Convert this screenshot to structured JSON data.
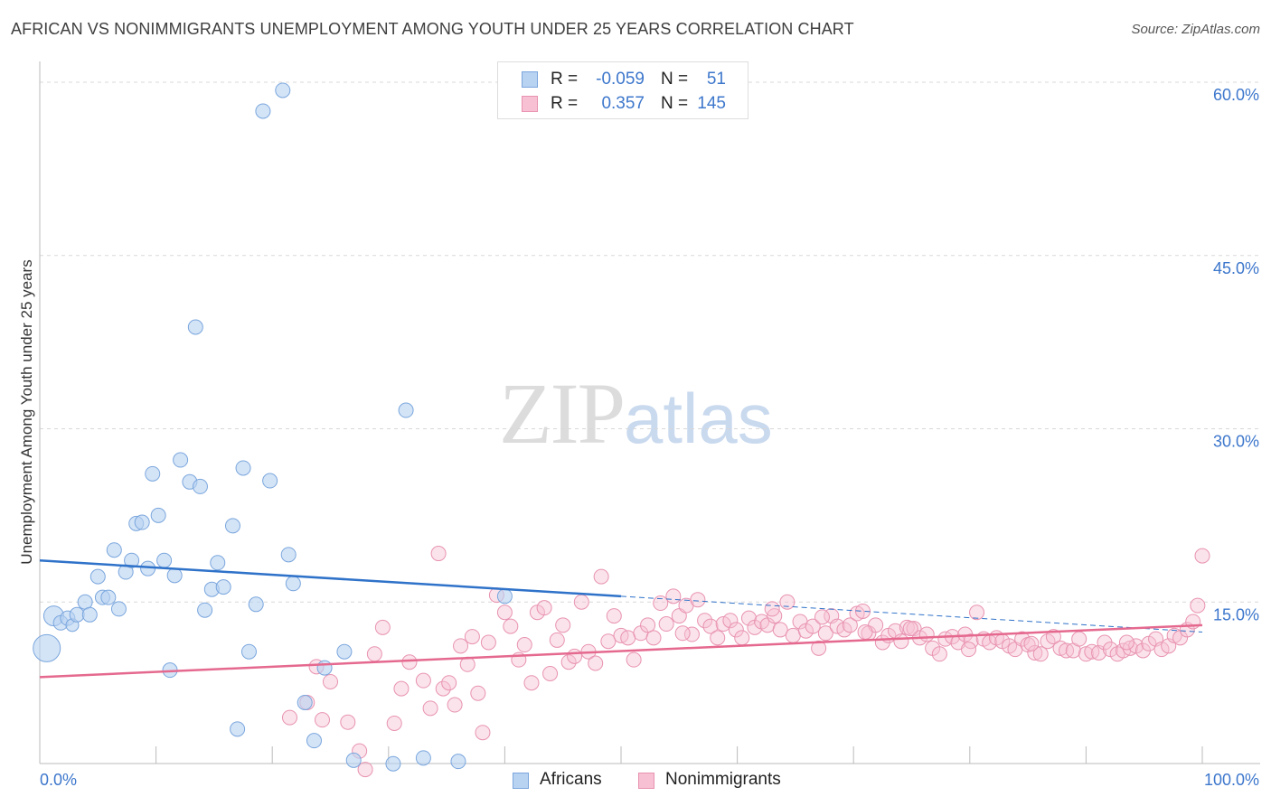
{
  "title": "AFRICAN VS NONIMMIGRANTS UNEMPLOYMENT AMONG YOUTH UNDER 25 YEARS CORRELATION CHART",
  "source": "Source: ZipAtlas.com",
  "watermark": {
    "zip": "ZIP",
    "atlas": "atlas"
  },
  "legend": {
    "series1": {
      "r_label": "R =",
      "r_value": "-0.059",
      "n_label": "N =",
      "n_value": "51"
    },
    "series2": {
      "r_label": "R =",
      "r_value": "0.357",
      "n_label": "N =",
      "n_value": "145"
    }
  },
  "bottom_legend": {
    "series1": "Africans",
    "series2": "Nonimmigrants"
  },
  "colors": {
    "africans_fill": "#b8d2f2",
    "africans_stroke": "#7aa6dd",
    "africans_line": "#2f72c9",
    "nonimm_fill": "#f7c0d3",
    "nonimm_stroke": "#e893b1",
    "nonimm_line": "#e5698f",
    "axis_text": "#3d77cc",
    "grid": "#d8d8d8"
  },
  "chart_data": {
    "type": "scatter",
    "title": "AFRICAN VS NONIMMIGRANTS UNEMPLOYMENT AMONG YOUTH UNDER 25 YEARS CORRELATION CHART",
    "xlabel": "",
    "ylabel": "Unemployment Among Youth under 25 years",
    "xlim": [
      0,
      100
    ],
    "ylim": [
      0,
      60.0
    ],
    "x_tick_labels": [
      "0.0%",
      "100.0%"
    ],
    "y_ticks": [
      15.0,
      30.0,
      45.0,
      60.0
    ],
    "y_tick_labels": [
      "15.0%",
      "30.0%",
      "45.0%",
      "60.0%"
    ],
    "grid": "horizontal dashed",
    "legend_position": "top-center",
    "series": [
      {
        "name": "Africans",
        "r": -0.059,
        "n": 51,
        "trend": {
          "x": [
            0,
            100
          ],
          "y": [
            18.6,
            12.4
          ],
          "solid_until_x": 50
        },
        "points": [
          [
            0.6,
            11.0,
            14
          ],
          [
            1.2,
            13.8,
            10
          ],
          [
            1.8,
            13.2,
            7
          ],
          [
            2.4,
            13.6,
            7
          ],
          [
            2.8,
            13.0,
            6
          ],
          [
            3.2,
            13.9,
            7
          ],
          [
            3.9,
            15.0,
            7
          ],
          [
            4.3,
            13.9,
            7
          ],
          [
            5.0,
            17.2,
            7
          ],
          [
            5.4,
            15.4,
            7
          ],
          [
            5.9,
            15.4,
            7
          ],
          [
            6.4,
            19.5,
            7
          ],
          [
            6.8,
            14.4,
            7
          ],
          [
            7.4,
            17.6,
            7
          ],
          [
            7.9,
            18.6,
            7
          ],
          [
            8.3,
            21.8,
            7
          ],
          [
            8.8,
            21.9,
            7
          ],
          [
            9.3,
            17.9,
            7
          ],
          [
            9.7,
            26.1,
            7
          ],
          [
            10.2,
            22.5,
            7
          ],
          [
            10.7,
            18.6,
            7
          ],
          [
            11.2,
            9.1,
            7
          ],
          [
            11.6,
            17.3,
            7
          ],
          [
            12.1,
            27.3,
            7
          ],
          [
            12.9,
            25.4,
            7
          ],
          [
            13.4,
            38.8,
            7
          ],
          [
            13.8,
            25.0,
            7
          ],
          [
            14.2,
            14.3,
            7
          ],
          [
            14.8,
            16.1,
            7
          ],
          [
            15.3,
            18.4,
            7
          ],
          [
            15.8,
            16.3,
            7
          ],
          [
            16.6,
            21.6,
            7
          ],
          [
            17.0,
            4.0,
            7
          ],
          [
            17.5,
            26.6,
            7
          ],
          [
            18.0,
            10.7,
            7
          ],
          [
            18.6,
            14.8,
            7
          ],
          [
            19.2,
            57.5,
            7
          ],
          [
            19.8,
            25.5,
            7
          ],
          [
            20.9,
            59.3,
            7
          ],
          [
            21.4,
            19.1,
            7
          ],
          [
            21.8,
            16.6,
            7
          ],
          [
            22.8,
            6.3,
            7
          ],
          [
            23.6,
            3.0,
            7
          ],
          [
            24.5,
            9.3,
            7
          ],
          [
            26.2,
            10.7,
            7
          ],
          [
            27.0,
            1.3,
            7
          ],
          [
            30.4,
            1.0,
            7
          ],
          [
            31.5,
            31.6,
            7
          ],
          [
            33.0,
            1.5,
            7
          ],
          [
            36.0,
            1.2,
            7
          ],
          [
            40.0,
            15.5,
            7
          ]
        ]
      },
      {
        "name": "Nonimmigrants",
        "r": 0.357,
        "n": 145,
        "trend": {
          "x": [
            0,
            100
          ],
          "y": [
            8.5,
            13.0
          ]
        },
        "points": [
          [
            21.5,
            5.0
          ],
          [
            23.0,
            6.3
          ],
          [
            23.8,
            9.4
          ],
          [
            24.3,
            4.8
          ],
          [
            25.0,
            8.1
          ],
          [
            26.5,
            4.6
          ],
          [
            27.5,
            2.1
          ],
          [
            28.0,
            0.5
          ],
          [
            28.8,
            10.5
          ],
          [
            29.5,
            12.8
          ],
          [
            30.5,
            4.5
          ],
          [
            31.1,
            7.5
          ],
          [
            31.8,
            9.8
          ],
          [
            33.0,
            8.2
          ],
          [
            33.6,
            5.8
          ],
          [
            34.3,
            19.2
          ],
          [
            34.7,
            7.5
          ],
          [
            35.2,
            8.0
          ],
          [
            35.7,
            6.1
          ],
          [
            36.2,
            11.2
          ],
          [
            36.8,
            9.6
          ],
          [
            37.2,
            12.0
          ],
          [
            37.7,
            7.1
          ],
          [
            38.1,
            3.7
          ],
          [
            38.6,
            11.5
          ],
          [
            39.3,
            15.6
          ],
          [
            40.0,
            14.1
          ],
          [
            40.5,
            12.9
          ],
          [
            41.2,
            10.0
          ],
          [
            41.7,
            11.3
          ],
          [
            42.3,
            8.0
          ],
          [
            42.8,
            14.1
          ],
          [
            43.4,
            14.5
          ],
          [
            43.9,
            8.8
          ],
          [
            44.5,
            11.7
          ],
          [
            45.0,
            13.0
          ],
          [
            45.5,
            9.8
          ],
          [
            46.0,
            10.3
          ],
          [
            46.6,
            15.0
          ],
          [
            47.2,
            10.7
          ],
          [
            47.8,
            9.7
          ],
          [
            48.3,
            17.2
          ],
          [
            48.9,
            11.6
          ],
          [
            49.4,
            13.8
          ],
          [
            50.0,
            12.1
          ],
          [
            50.6,
            11.9
          ],
          [
            51.1,
            10.0
          ],
          [
            51.7,
            12.3
          ],
          [
            52.3,
            13.0
          ],
          [
            52.8,
            11.9
          ],
          [
            53.4,
            14.9
          ],
          [
            53.9,
            13.1
          ],
          [
            54.5,
            15.5
          ],
          [
            55.0,
            13.8
          ],
          [
            55.6,
            14.7
          ],
          [
            56.1,
            12.2
          ],
          [
            56.6,
            15.2
          ],
          [
            57.2,
            13.4
          ],
          [
            57.7,
            12.9
          ],
          [
            58.3,
            11.9
          ],
          [
            58.8,
            13.1
          ],
          [
            59.4,
            13.4
          ],
          [
            59.9,
            12.6
          ],
          [
            60.4,
            11.9
          ],
          [
            61.0,
            13.6
          ],
          [
            61.5,
            12.8
          ],
          [
            62.1,
            13.3
          ],
          [
            62.6,
            13.0
          ],
          [
            63.2,
            13.8
          ],
          [
            63.7,
            12.6
          ],
          [
            64.3,
            15.0
          ],
          [
            64.8,
            12.1
          ],
          [
            65.4,
            13.3
          ],
          [
            65.9,
            12.5
          ],
          [
            66.5,
            12.9
          ],
          [
            67.0,
            11.0
          ],
          [
            67.6,
            12.3
          ],
          [
            68.1,
            13.8
          ],
          [
            68.6,
            12.9
          ],
          [
            69.2,
            12.6
          ],
          [
            69.7,
            13.0
          ],
          [
            70.3,
            14.0
          ],
          [
            70.8,
            14.2
          ],
          [
            71.3,
            12.3
          ],
          [
            71.9,
            13.0
          ],
          [
            72.5,
            11.5
          ],
          [
            73.0,
            12.1
          ],
          [
            73.6,
            12.5
          ],
          [
            74.1,
            11.6
          ],
          [
            74.6,
            12.8
          ],
          [
            75.2,
            12.7
          ],
          [
            75.7,
            11.9
          ],
          [
            76.3,
            12.2
          ],
          [
            76.8,
            11.0
          ],
          [
            77.4,
            10.5
          ],
          [
            77.9,
            11.8
          ],
          [
            78.5,
            12.0
          ],
          [
            79.0,
            11.5
          ],
          [
            79.6,
            12.2
          ],
          [
            80.1,
            11.6
          ],
          [
            80.6,
            14.1
          ],
          [
            81.2,
            11.8
          ],
          [
            81.7,
            11.5
          ],
          [
            82.3,
            11.9
          ],
          [
            82.8,
            11.6
          ],
          [
            83.4,
            11.2
          ],
          [
            83.9,
            10.9
          ],
          [
            84.5,
            11.8
          ],
          [
            85.0,
            11.3
          ],
          [
            85.6,
            10.6
          ],
          [
            86.1,
            10.5
          ],
          [
            86.7,
            11.6
          ],
          [
            87.2,
            12.0
          ],
          [
            87.8,
            11.0
          ],
          [
            88.3,
            10.8
          ],
          [
            88.9,
            10.8
          ],
          [
            89.4,
            11.8
          ],
          [
            90.0,
            10.5
          ],
          [
            90.5,
            10.7
          ],
          [
            91.1,
            10.6
          ],
          [
            91.6,
            11.5
          ],
          [
            92.1,
            10.9
          ],
          [
            92.7,
            10.5
          ],
          [
            93.2,
            10.8
          ],
          [
            93.8,
            11.0
          ],
          [
            94.3,
            11.2
          ],
          [
            94.9,
            10.8
          ],
          [
            95.4,
            11.4
          ],
          [
            96.0,
            11.8
          ],
          [
            96.5,
            10.9
          ],
          [
            97.1,
            11.2
          ],
          [
            97.6,
            12.1
          ],
          [
            98.1,
            11.9
          ],
          [
            98.7,
            12.6
          ],
          [
            99.2,
            13.3
          ],
          [
            99.6,
            14.7
          ],
          [
            100.0,
            19.0
          ],
          [
            79.9,
            10.9
          ],
          [
            55.3,
            12.3
          ],
          [
            63.0,
            14.4
          ],
          [
            67.3,
            13.7
          ],
          [
            71.0,
            12.4
          ],
          [
            74.9,
            12.7
          ],
          [
            85.3,
            11.4
          ],
          [
            93.5,
            11.5
          ]
        ]
      }
    ]
  }
}
